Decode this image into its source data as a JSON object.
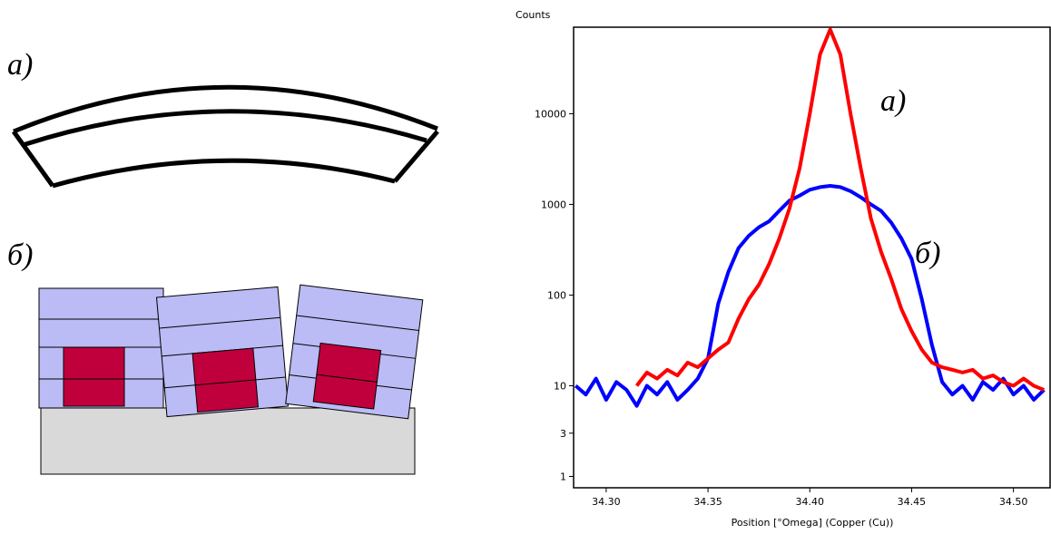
{
  "diagram": {
    "labels": [
      "а)",
      "б)"
    ]
  },
  "chart_data": {
    "type": "line",
    "y_label": "Counts",
    "x_label": "Position [°Omega] (Copper (Cu))",
    "log_scale": true,
    "annotations": [
      "а)",
      "б)"
    ],
    "xlim": [
      34.284,
      34.518
    ],
    "xticks": [
      {
        "value": 34.3,
        "label": "34.30"
      },
      {
        "value": 34.35,
        "label": "34.35"
      },
      {
        "value": 34.4,
        "label": "34.40"
      },
      {
        "value": 34.45,
        "label": "34.45"
      },
      {
        "value": 34.5,
        "label": "34.50"
      }
    ],
    "ylim": [
      0.75,
      90000
    ],
    "yticks": [
      1,
      3,
      10,
      100,
      1000,
      10000
    ],
    "series": [
      {
        "color": "#0000ff",
        "x": [
          34.285,
          34.29,
          34.295,
          34.3,
          34.305,
          34.31,
          34.315,
          34.32,
          34.325,
          34.33,
          34.335,
          34.34,
          34.345,
          34.35,
          34.355,
          34.36,
          34.365,
          34.37,
          34.375,
          34.38,
          34.385,
          34.39,
          34.395,
          34.4,
          34.405,
          34.41,
          34.415,
          34.42,
          34.425,
          34.43,
          34.435,
          34.44,
          34.445,
          34.45,
          34.455,
          34.46,
          34.465,
          34.47,
          34.475,
          34.48,
          34.485,
          34.49,
          34.495,
          34.5,
          34.505,
          34.51,
          34.515
        ],
        "values": [
          10,
          8,
          12,
          7,
          11,
          9,
          6,
          10,
          8,
          11,
          7,
          9,
          12,
          20,
          80,
          180,
          330,
          450,
          560,
          650,
          850,
          1100,
          1250,
          1450,
          1550,
          1600,
          1550,
          1400,
          1200,
          1000,
          850,
          630,
          420,
          250,
          90,
          28,
          11,
          8,
          10,
          7,
          11,
          9,
          12,
          8,
          10,
          7,
          9
        ]
      },
      {
        "color": "#ff0000",
        "x": [
          34.315,
          34.32,
          34.325,
          34.33,
          34.335,
          34.34,
          34.345,
          34.35,
          34.355,
          34.36,
          34.365,
          34.37,
          34.375,
          34.38,
          34.385,
          34.39,
          34.395,
          34.4,
          34.405,
          34.41,
          34.415,
          34.42,
          34.425,
          34.43,
          34.435,
          34.44,
          34.445,
          34.45,
          34.455,
          34.46,
          34.465,
          34.47,
          34.475,
          34.48,
          34.485,
          34.49,
          34.495,
          34.5,
          34.505,
          34.51,
          34.515
        ],
        "values": [
          10,
          14,
          12,
          15,
          13,
          18,
          16,
          20,
          25,
          30,
          55,
          90,
          130,
          220,
          420,
          900,
          2500,
          10000,
          45000,
          85000,
          45000,
          10000,
          2500,
          700,
          300,
          150,
          70,
          40,
          25,
          18,
          16,
          15,
          14,
          15,
          12,
          13,
          11,
          10,
          12,
          10,
          9
        ]
      }
    ]
  }
}
